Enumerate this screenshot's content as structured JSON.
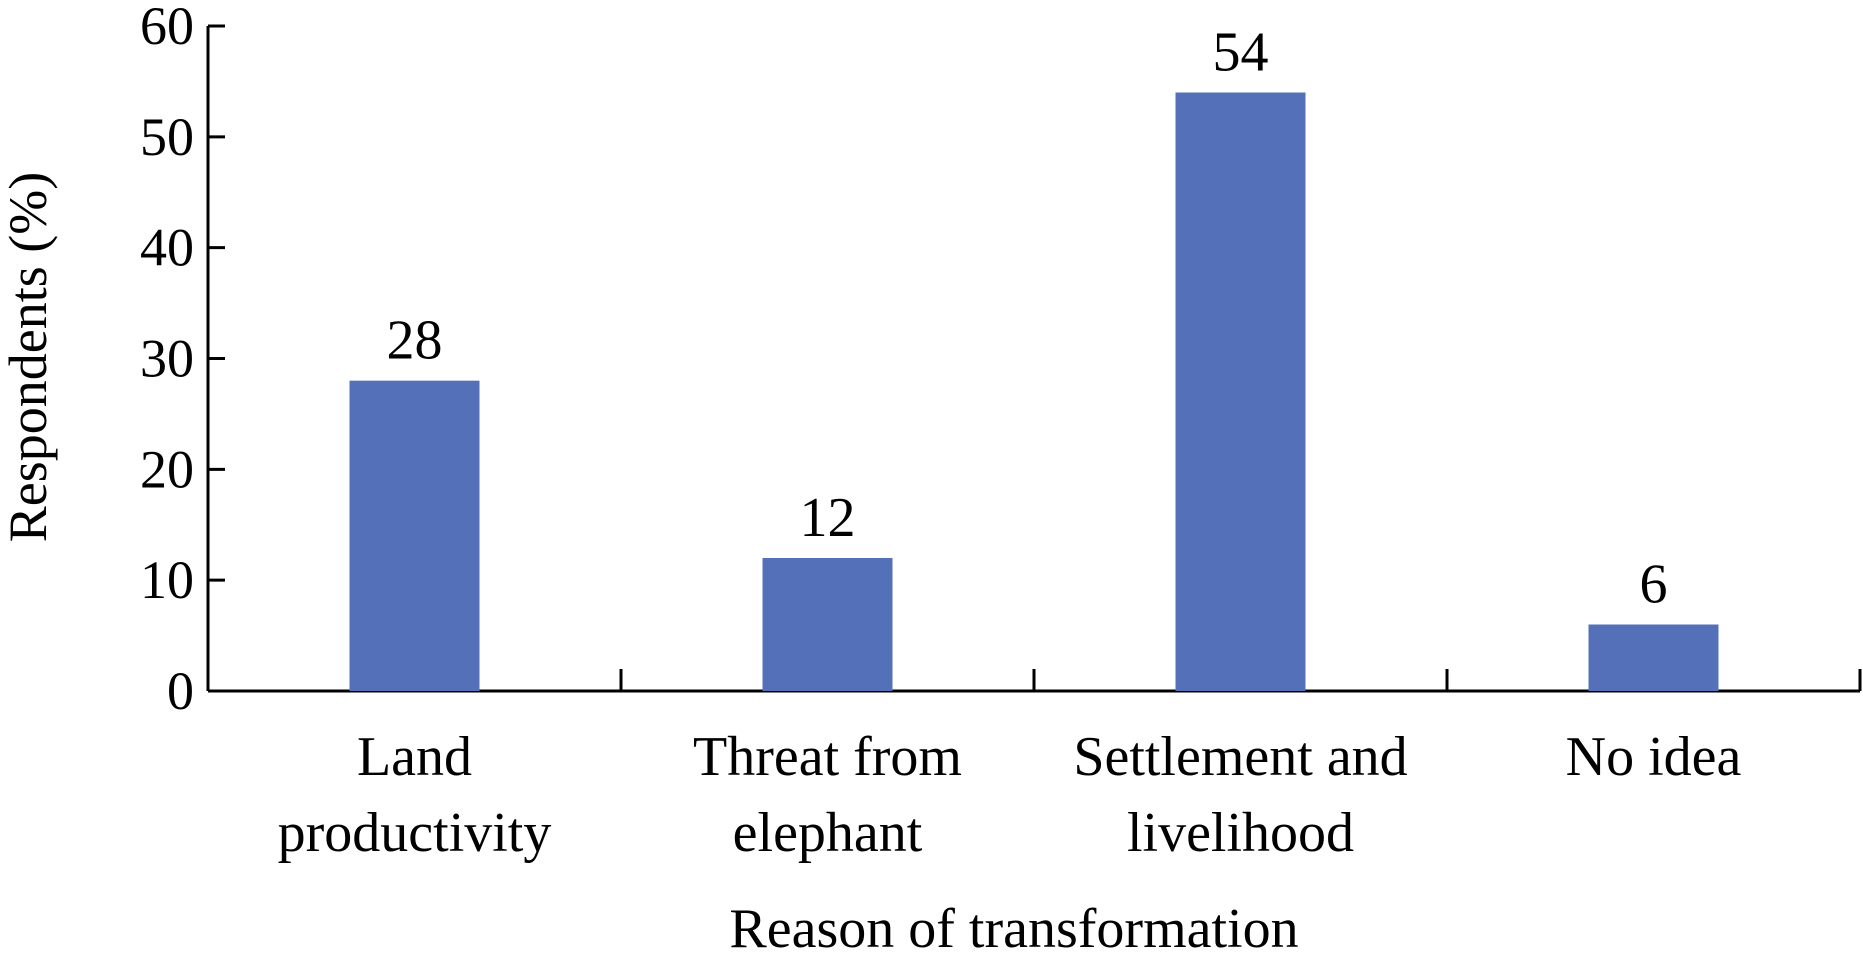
{
  "chart_data": {
    "type": "bar",
    "title": "",
    "xlabel": "Reason of transformation",
    "ylabel": "Respondents (%)",
    "ylim": [
      0,
      60
    ],
    "yticks": [
      0,
      10,
      20,
      30,
      40,
      50,
      60
    ],
    "categories": [
      [
        "Land",
        "productivity"
      ],
      [
        "Threat from",
        "elephant"
      ],
      [
        "Settlement and",
        "livelihood"
      ],
      [
        "No idea"
      ]
    ],
    "values": [
      28,
      12,
      54,
      6
    ],
    "data_labels": [
      "28",
      "12",
      "54",
      "6"
    ],
    "bar_color": "#5470b8",
    "axis_color": "#000000",
    "grid": false,
    "legend": "none"
  }
}
